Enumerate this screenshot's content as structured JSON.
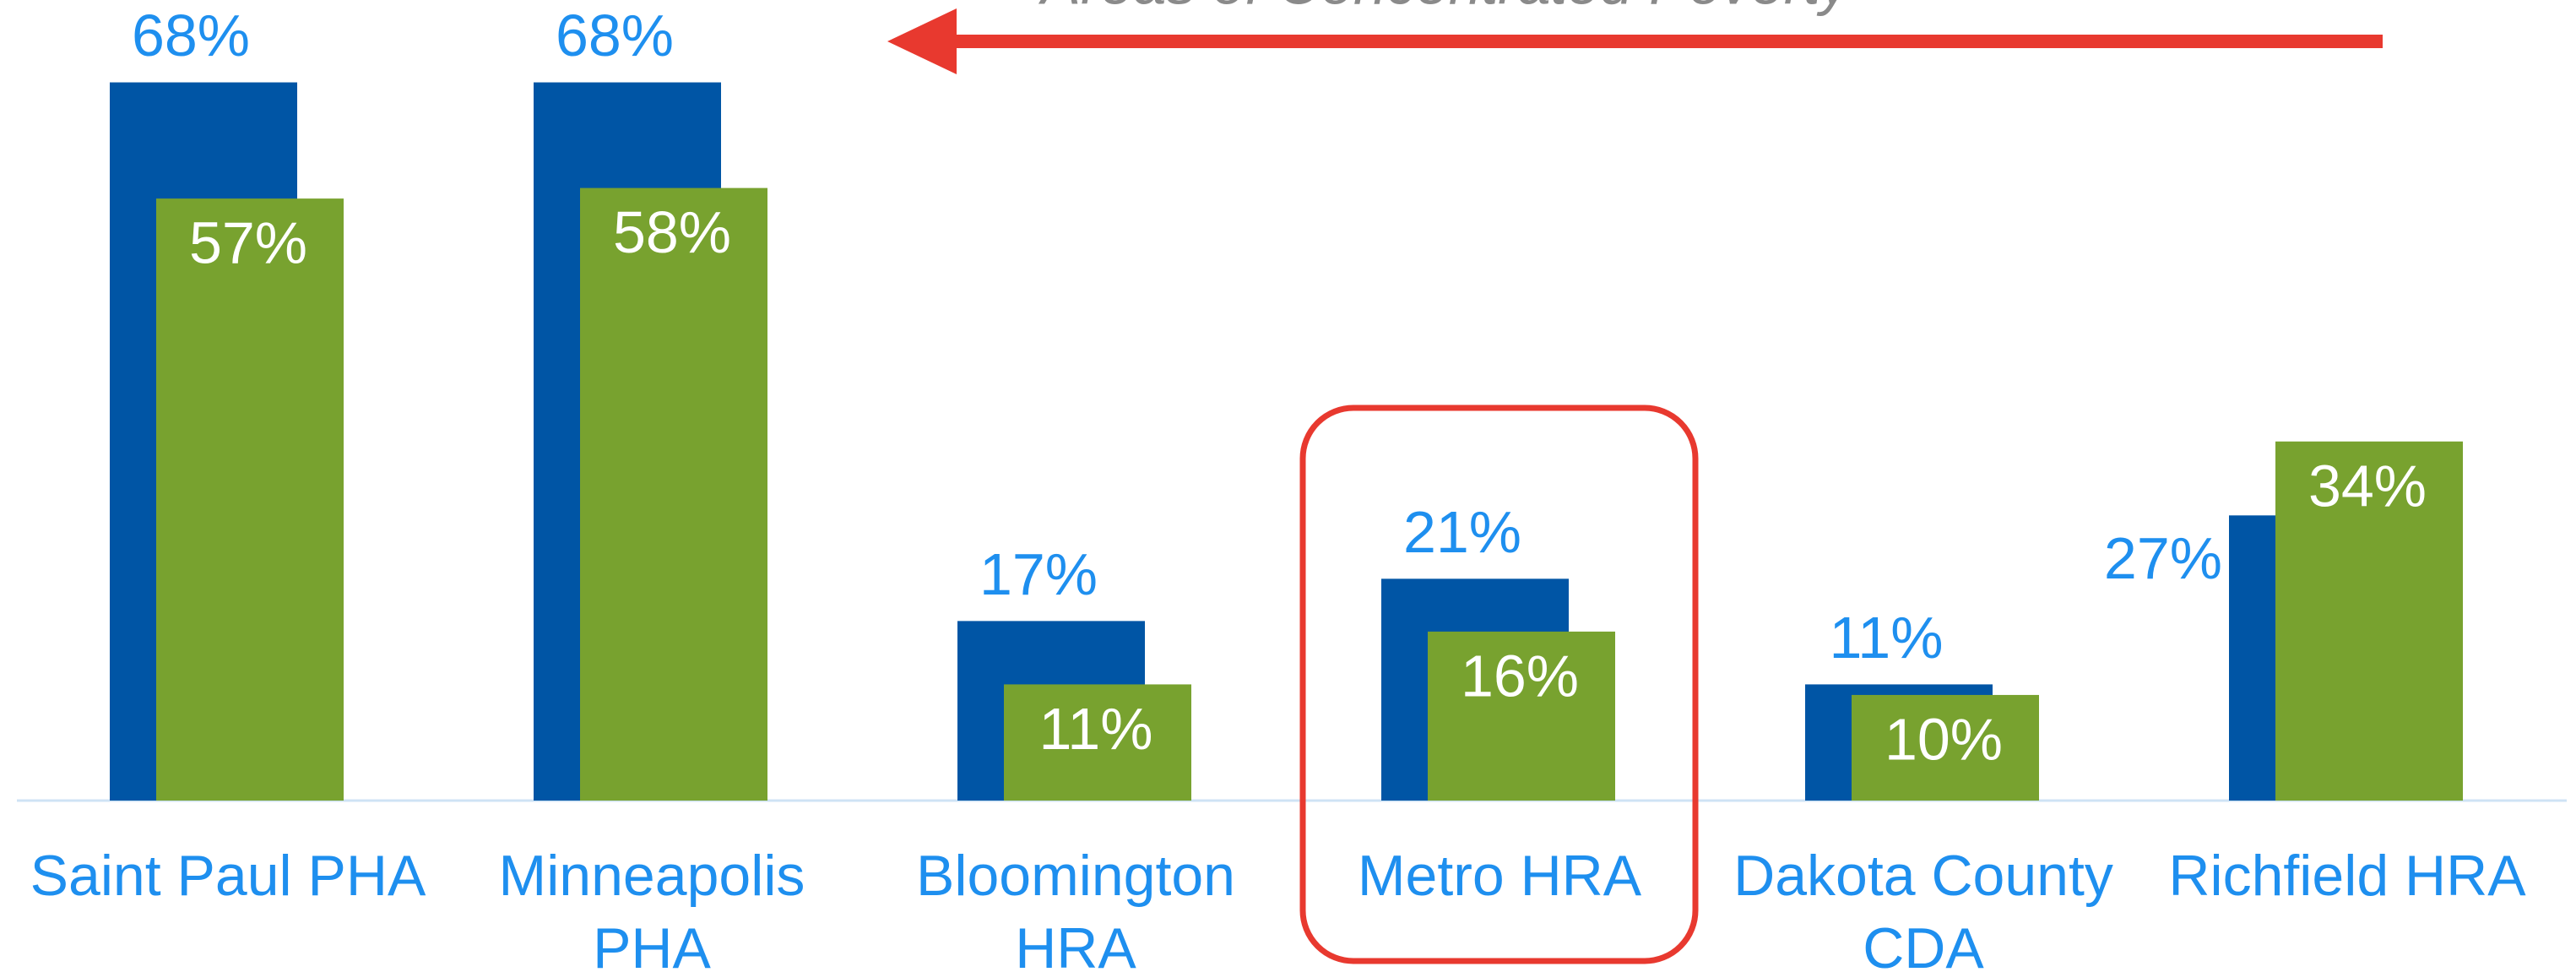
{
  "chart_data": {
    "type": "bar",
    "annotation": "Areas of Concentrated Poverty",
    "categories": [
      "Saint Paul PHA",
      "Minneapolis PHA",
      "Bloomington HRA",
      "Metro HRA",
      "Dakota County CDA",
      "Richfield HRA"
    ],
    "series": [
      {
        "color": "#0055a5",
        "values": [
          68,
          68,
          17,
          21,
          11,
          27
        ],
        "value_labels": [
          "68%",
          "68%",
          "17%",
          "21%",
          "11%",
          "27%"
        ]
      },
      {
        "color": "#78a22f",
        "values": [
          57,
          58,
          11,
          16,
          10,
          34
        ],
        "value_labels": [
          "57%",
          "58%",
          "11%",
          "16%",
          "10%",
          "34%"
        ]
      }
    ],
    "ylim": [
      0,
      75
    ]
  }
}
